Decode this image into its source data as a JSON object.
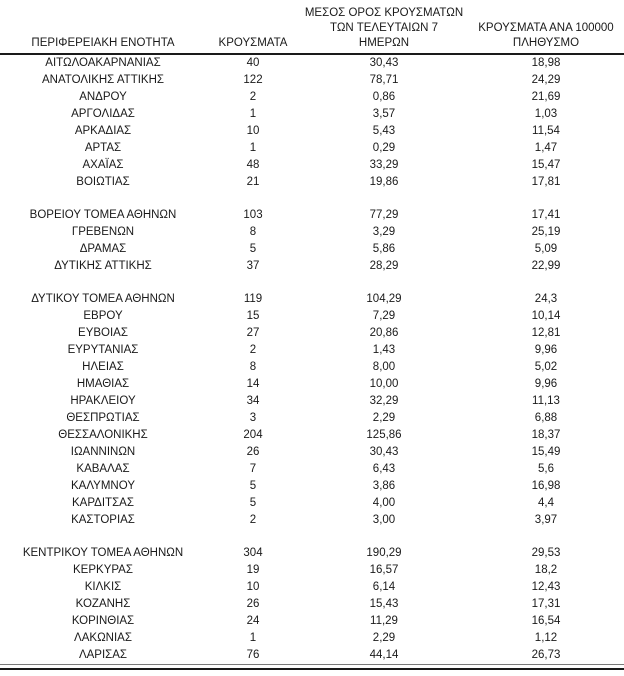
{
  "chart_data": {
    "type": "table",
    "title": "",
    "legend": "none",
    "grid": "off",
    "columns": [
      "ΠΕΡΙΦΕΡΕΙΑΚΗ ΕΝΟΤΗΤΑ",
      "ΚΡΟΥΣΜΑΤΑ",
      "ΜΕΣΟΣ ΟΡΟΣ ΚΡΟΥΣΜΑΤΩΝ ΤΩΝ ΤΕΛΕΥΤΑΙΩΝ 7 ΗΜΕΡΩΝ",
      "ΚΡΟΥΣΜΑΤΑ ΑΝΑ 100000 ΠΛΗΘΥΣΜΟ"
    ],
    "header_lines": [
      [
        "ΠΕΡΙΦΕΡΕΙΑΚΗ ΕΝΟΤΗΤΑ"
      ],
      [
        "ΚΡΟΥΣΜΑΤΑ"
      ],
      [
        "ΜΕΣΟΣ ΟΡΟΣ ΚΡΟΥΣΜΑΤΩΝ",
        "ΤΩΝ ΤΕΛΕΥΤΑΙΩΝ 7",
        "ΗΜΕΡΩΝ"
      ],
      [
        "ΚΡΟΥΣΜΑΤΑ ΑΝΑ 100000",
        "ΠΛΗΘΥΣΜΟ"
      ]
    ],
    "rows": [
      [
        "ΑΙΤΩΛΟΑΚΑΡΝΑΝΙΑΣ",
        "40",
        "30,43",
        "18,98"
      ],
      [
        "ΑΝΑΤΟΛΙΚΗΣ ΑΤΤΙΚΗΣ",
        "122",
        "78,71",
        "24,29"
      ],
      [
        "ΑΝΔΡΟΥ",
        "2",
        "0,86",
        "21,69"
      ],
      [
        "ΑΡΓΟΛΙΔΑΣ",
        "1",
        "3,57",
        "1,03"
      ],
      [
        "ΑΡΚΑΔΙΑΣ",
        "10",
        "5,43",
        "11,54"
      ],
      [
        "ΑΡΤΑΣ",
        "1",
        "0,29",
        "1,47"
      ],
      [
        "ΑΧΑΪΑΣ",
        "48",
        "33,29",
        "15,47"
      ],
      [
        "ΒΟΙΩΤΙΑΣ",
        "21",
        "19,86",
        "17,81"
      ],
      null,
      [
        "ΒΟΡΕΙΟΥ ΤΟΜΕΑ ΑΘΗΝΩΝ",
        "103",
        "77,29",
        "17,41"
      ],
      [
        "ΓΡΕΒΕΝΩΝ",
        "8",
        "3,29",
        "25,19"
      ],
      [
        "ΔΡΑΜΑΣ",
        "5",
        "5,86",
        "5,09"
      ],
      [
        "ΔΥΤΙΚΗΣ ΑΤΤΙΚΗΣ",
        "37",
        "28,29",
        "22,99"
      ],
      null,
      [
        "ΔΥΤΙΚΟΥ ΤΟΜΕΑ ΑΘΗΝΩΝ",
        "119",
        "104,29",
        "24,3"
      ],
      [
        "ΕΒΡΟΥ",
        "15",
        "7,29",
        "10,14"
      ],
      [
        "ΕΥΒΟΙΑΣ",
        "27",
        "20,86",
        "12,81"
      ],
      [
        "ΕΥΡΥΤΑΝΙΑΣ",
        "2",
        "1,43",
        "9,96"
      ],
      [
        "ΗΛΕΙΑΣ",
        "8",
        "8,00",
        "5,02"
      ],
      [
        "ΗΜΑΘΙΑΣ",
        "14",
        "10,00",
        "9,96"
      ],
      [
        "ΗΡΑΚΛΕΙΟΥ",
        "34",
        "32,29",
        "11,13"
      ],
      [
        "ΘΕΣΠΡΩΤΙΑΣ",
        "3",
        "2,29",
        "6,88"
      ],
      [
        "ΘΕΣΣΑΛΟΝΙΚΗΣ",
        "204",
        "125,86",
        "18,37"
      ],
      [
        "ΙΩΑΝΝΙΝΩΝ",
        "26",
        "30,43",
        "15,49"
      ],
      [
        "ΚΑΒΑΛΑΣ",
        "7",
        "6,43",
        "5,6"
      ],
      [
        "ΚΑΛΥΜΝΟΥ",
        "5",
        "3,86",
        "16,98"
      ],
      [
        "ΚΑΡΔΙΤΣΑΣ",
        "5",
        "4,00",
        "4,4"
      ],
      [
        "ΚΑΣΤΟΡΙΑΣ",
        "2",
        "3,00",
        "3,97"
      ],
      null,
      [
        "ΚΕΝΤΡΙΚΟΥ ΤΟΜΕΑ ΑΘΗΝΩΝ",
        "304",
        "190,29",
        "29,53"
      ],
      [
        "ΚΕΡΚΥΡΑΣ",
        "19",
        "16,57",
        "18,2"
      ],
      [
        "ΚΙΛΚΙΣ",
        "10",
        "6,14",
        "12,43"
      ],
      [
        "ΚΟΖΑΝΗΣ",
        "26",
        "15,43",
        "17,31"
      ],
      [
        "ΚΟΡΙΝΘΙΑΣ",
        "24",
        "11,29",
        "16,54"
      ],
      [
        "ΛΑΚΩΝΙΑΣ",
        "1",
        "2,29",
        "1,12"
      ],
      [
        "ΛΑΡΙΣΑΣ",
        "76",
        "44,14",
        "26,73"
      ]
    ],
    "colors": {
      "text": "#1a1a1a",
      "background": "#ffffff",
      "rule": "#1a1a1a"
    }
  }
}
